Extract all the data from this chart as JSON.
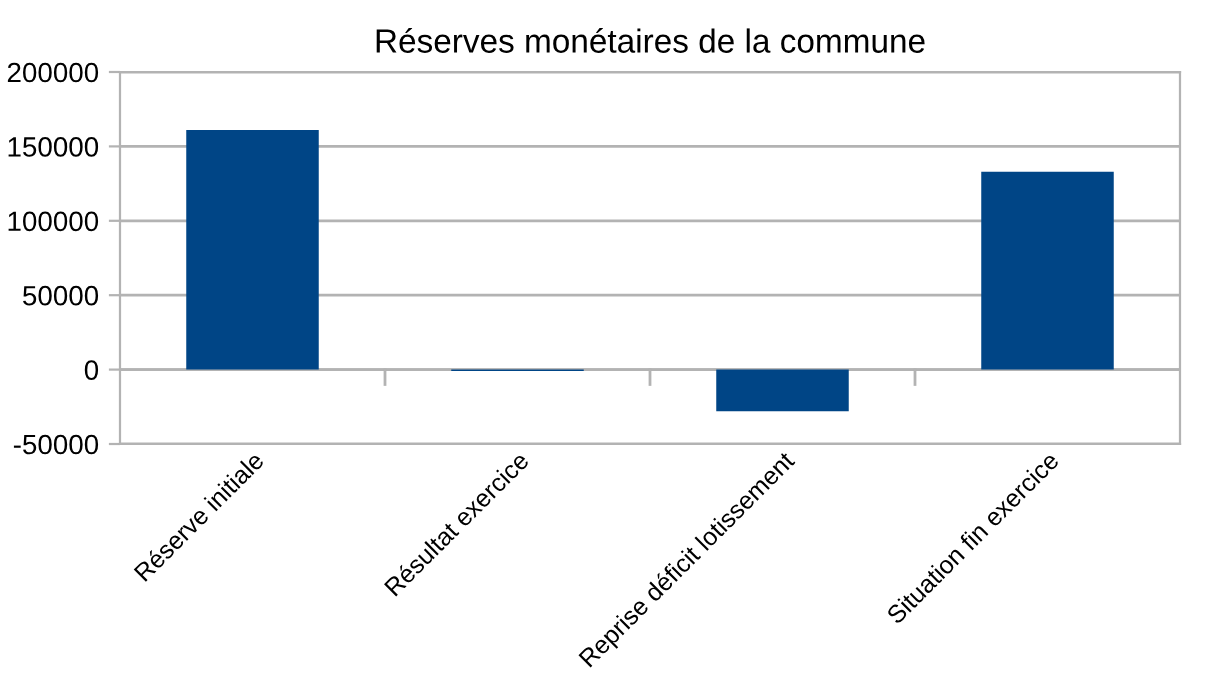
{
  "chart_data": {
    "type": "bar",
    "title": "Réserves monétaires de la commune",
    "categories": [
      "Réserve initiale",
      "Résultat exercice",
      "Reprise déficit lotissement",
      "Situation fin exercice"
    ],
    "values": [
      161000,
      -1000,
      -28000,
      133000
    ],
    "color": "#004586",
    "ylim": [
      -50000,
      200000
    ],
    "yticks": [
      -50000,
      0,
      50000,
      100000,
      150000,
      200000
    ],
    "grid": "y",
    "legend": false
  }
}
